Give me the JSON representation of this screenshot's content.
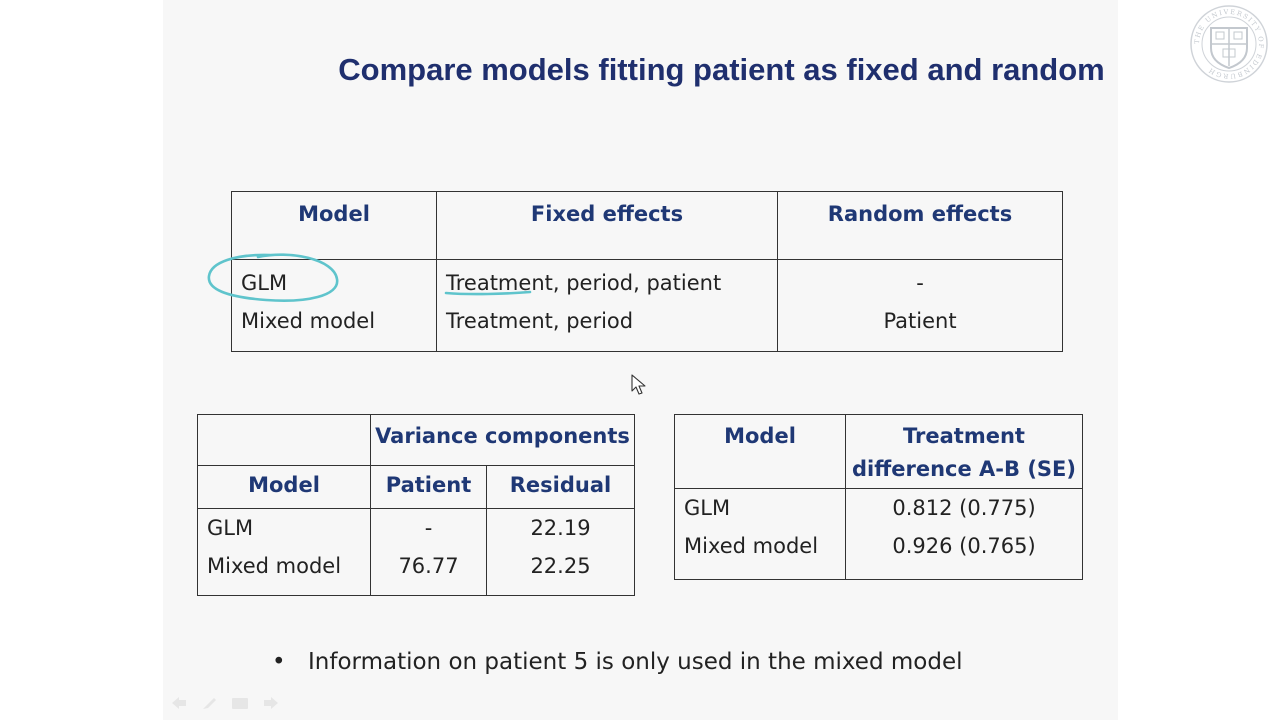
{
  "slide": {
    "title": "Compare models fitting patient as fixed and random",
    "table1": {
      "headers": [
        "Model",
        "Fixed effects",
        "Random effects"
      ],
      "rows": [
        {
          "model": "GLM",
          "fixed": "Treatment, period, patient",
          "random": "-"
        },
        {
          "model": "Mixed model",
          "fixed": "Treatment, period",
          "random": "Patient"
        }
      ]
    },
    "table2": {
      "group_header": "Variance components",
      "headers": [
        "Model",
        "Patient",
        "Residual"
      ],
      "rows": [
        {
          "model": "GLM",
          "patient": "-",
          "residual": "22.19"
        },
        {
          "model": "Mixed model",
          "patient": "76.77",
          "residual": "22.25"
        }
      ]
    },
    "table3": {
      "headers": [
        "Model",
        "Treatment",
        "difference A-B (SE)"
      ],
      "rows": [
        {
          "model": "GLM",
          "diff": "0.812 (0.775)"
        },
        {
          "model": "Mixed model",
          "diff": "0.926 (0.765)"
        }
      ]
    },
    "bullet": "Information on patient 5 is only used in the mixed model"
  },
  "logo": {
    "name": "university-crest-icon",
    "ring_text": "THE UNIVERSITY OF EDINBURGH"
  },
  "annotation_color": "#5fc4cc",
  "title_color": "#1f2f6e",
  "header_color": "#1f3875",
  "nav_icons": [
    "arrow-left-icon",
    "pen-icon",
    "menu-icon",
    "arrow-right-icon"
  ]
}
